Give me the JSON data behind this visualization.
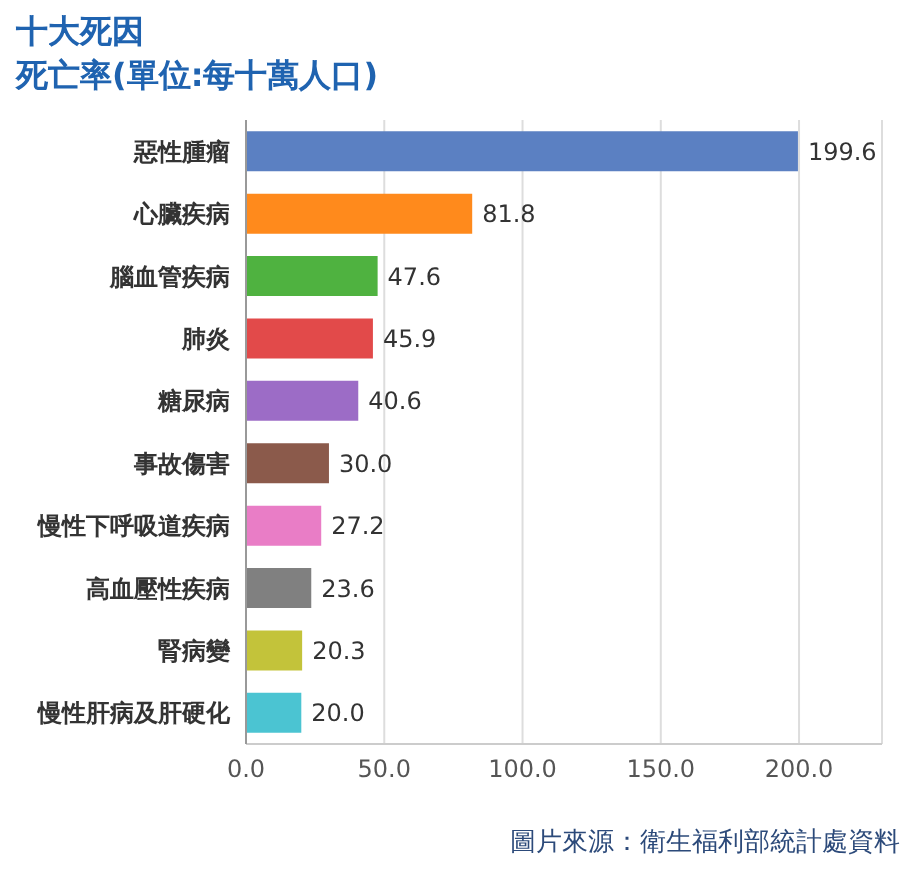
{
  "chart_data": {
    "type": "bar",
    "orientation": "horizontal",
    "title": "十大死因",
    "subtitle": "死亡率(單位:每十萬人口)",
    "categories": [
      "惡性腫瘤",
      "心臟疾病",
      "腦血管疾病",
      "肺炎",
      "糖尿病",
      "事故傷害",
      "慢性下呼吸道疾病",
      "高血壓性疾病",
      "腎病變",
      "慢性肝病及肝硬化"
    ],
    "values": [
      199.6,
      81.8,
      47.6,
      45.9,
      40.6,
      30.0,
      27.2,
      23.6,
      20.3,
      20.0
    ],
    "colors": [
      "#5b80c2",
      "#ff8a1c",
      "#4fb240",
      "#e24a4a",
      "#9c6cc6",
      "#8b5a4b",
      "#e97dc6",
      "#808080",
      "#c3c33a",
      "#4bc4d2"
    ],
    "xlim": [
      0,
      230
    ],
    "xticks": [
      {
        "value": 0,
        "label": "0.0"
      },
      {
        "value": 50,
        "label": "50.0"
      },
      {
        "value": 100,
        "label": "100.0"
      },
      {
        "value": 150,
        "label": "150.0"
      },
      {
        "value": 200,
        "label": "200.0"
      }
    ],
    "grid": "x",
    "value_labels": [
      "199.6",
      "81.8",
      "47.6",
      "45.9",
      "40.6",
      "30.0",
      "27.2",
      "23.6",
      "20.3",
      "20.0"
    ],
    "annotations": [
      "圖片來源：衛生福利部統計處資料"
    ]
  }
}
